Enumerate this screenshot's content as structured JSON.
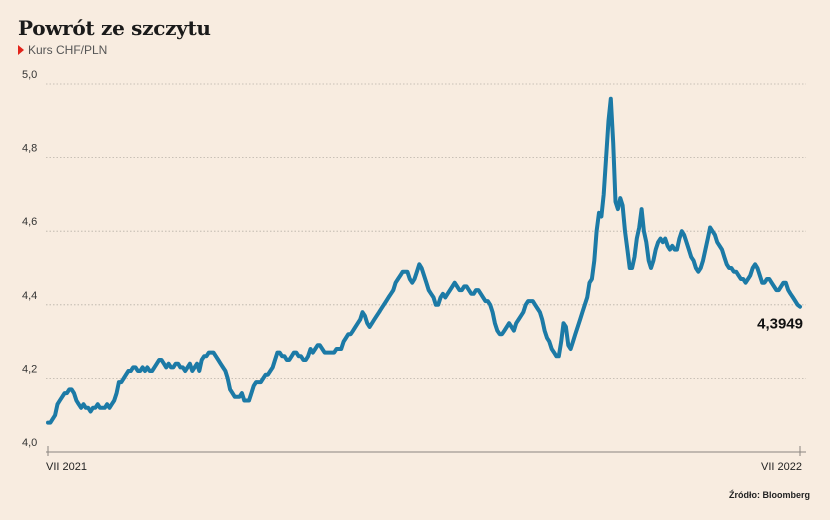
{
  "header": {
    "title": "Powrót ze szczytu",
    "subtitle": "Kurs CHF/PLN"
  },
  "source": "Źródło: Bloomberg",
  "colors": {
    "line": "#1c7aa6",
    "background": "#f8ece0",
    "marker": "#e2231a",
    "grid": "#b9b1a8"
  },
  "chart_data": {
    "type": "line",
    "title": "Powrót ze szczytu",
    "subtitle": "Kurs CHF/PLN",
    "ylim": [
      4.0,
      5.0
    ],
    "yticks": [
      4.0,
      4.2,
      4.4,
      4.6,
      4.8,
      5.0
    ],
    "ytick_labels": [
      "4,0",
      "4,2",
      "4,4",
      "4,6",
      "4,8",
      "5,0"
    ],
    "xtick_labels": [
      "VII 2021",
      "VII 2022"
    ],
    "xlim": [
      0,
      260
    ],
    "grid": "horizontal-dotted",
    "last_value_label": "4,3949",
    "series": [
      {
        "values": [
          4.08,
          4.08,
          4.09,
          4.1,
          4.13,
          4.14,
          4.15,
          4.16,
          4.16,
          4.17,
          4.17,
          4.16,
          4.14,
          4.13,
          4.12,
          4.13,
          4.12,
          4.12,
          4.11,
          4.12,
          4.12,
          4.13,
          4.12,
          4.12,
          4.12,
          4.13,
          4.12,
          4.13,
          4.14,
          4.16,
          4.19,
          4.19,
          4.2,
          4.21,
          4.22,
          4.22,
          4.23,
          4.23,
          4.22,
          4.22,
          4.23,
          4.22,
          4.23,
          4.22,
          4.22,
          4.23,
          4.24,
          4.25,
          4.25,
          4.24,
          4.23,
          4.24,
          4.23,
          4.23,
          4.24,
          4.24,
          4.23,
          4.23,
          4.22,
          4.23,
          4.24,
          4.22,
          4.23,
          4.24,
          4.22,
          4.25,
          4.26,
          4.26,
          4.27,
          4.27,
          4.27,
          4.26,
          4.25,
          4.24,
          4.23,
          4.22,
          4.2,
          4.17,
          4.16,
          4.15,
          4.15,
          4.15,
          4.16,
          4.14,
          4.14,
          4.14,
          4.16,
          4.18,
          4.19,
          4.19,
          4.19,
          4.2,
          4.21,
          4.21,
          4.22,
          4.23,
          4.25,
          4.27,
          4.27,
          4.26,
          4.26,
          4.25,
          4.25,
          4.26,
          4.27,
          4.27,
          4.26,
          4.26,
          4.25,
          4.25,
          4.26,
          4.28,
          4.27,
          4.28,
          4.29,
          4.29,
          4.28,
          4.27,
          4.27,
          4.27,
          4.27,
          4.27,
          4.28,
          4.28,
          4.28,
          4.3,
          4.31,
          4.32,
          4.32,
          4.33,
          4.34,
          4.35,
          4.36,
          4.38,
          4.37,
          4.35,
          4.34,
          4.35,
          4.36,
          4.37,
          4.38,
          4.39,
          4.4,
          4.41,
          4.42,
          4.43,
          4.44,
          4.46,
          4.47,
          4.48,
          4.49,
          4.49,
          4.49,
          4.47,
          4.46,
          4.47,
          4.49,
          4.51,
          4.5,
          4.48,
          4.46,
          4.44,
          4.43,
          4.42,
          4.4,
          4.4,
          4.42,
          4.43,
          4.42,
          4.43,
          4.44,
          4.45,
          4.46,
          4.45,
          4.44,
          4.44,
          4.45,
          4.45,
          4.44,
          4.43,
          4.43,
          4.44,
          4.44,
          4.43,
          4.42,
          4.41,
          4.41,
          4.4,
          4.38,
          4.35,
          4.33,
          4.32,
          4.32,
          4.33,
          4.34,
          4.35,
          4.34,
          4.33,
          4.35,
          4.36,
          4.37,
          4.38,
          4.4,
          4.41,
          4.41,
          4.41,
          4.4,
          4.39,
          4.38,
          4.36,
          4.33,
          4.31,
          4.3,
          4.28,
          4.27,
          4.26,
          4.26,
          4.3,
          4.35,
          4.34,
          4.29,
          4.28,
          4.3,
          4.32,
          4.34,
          4.36,
          4.38,
          4.4,
          4.42,
          4.46,
          4.47,
          4.52,
          4.6,
          4.65,
          4.64,
          4.7,
          4.8,
          4.9,
          4.96,
          4.84,
          4.68,
          4.66,
          4.69,
          4.67,
          4.6,
          4.55,
          4.5,
          4.5,
          4.53,
          4.58,
          4.61,
          4.66,
          4.6,
          4.57,
          4.52,
          4.5,
          4.52,
          4.55,
          4.57,
          4.58,
          4.57,
          4.58,
          4.56,
          4.55,
          4.56,
          4.55,
          4.55,
          4.58,
          4.6,
          4.59,
          4.57,
          4.55,
          4.53,
          4.52,
          4.5,
          4.49,
          4.5,
          4.52,
          4.55,
          4.58,
          4.61,
          4.6,
          4.59,
          4.57,
          4.56,
          4.55,
          4.53,
          4.51,
          4.5,
          4.5,
          4.49,
          4.49,
          4.48,
          4.47,
          4.47,
          4.46,
          4.47,
          4.48,
          4.5,
          4.51,
          4.5,
          4.48,
          4.46,
          4.46,
          4.47,
          4.47,
          4.46,
          4.45,
          4.44,
          4.44,
          4.45,
          4.46,
          4.46,
          4.44,
          4.43,
          4.42,
          4.41,
          4.4,
          4.3949
        ]
      }
    ]
  }
}
